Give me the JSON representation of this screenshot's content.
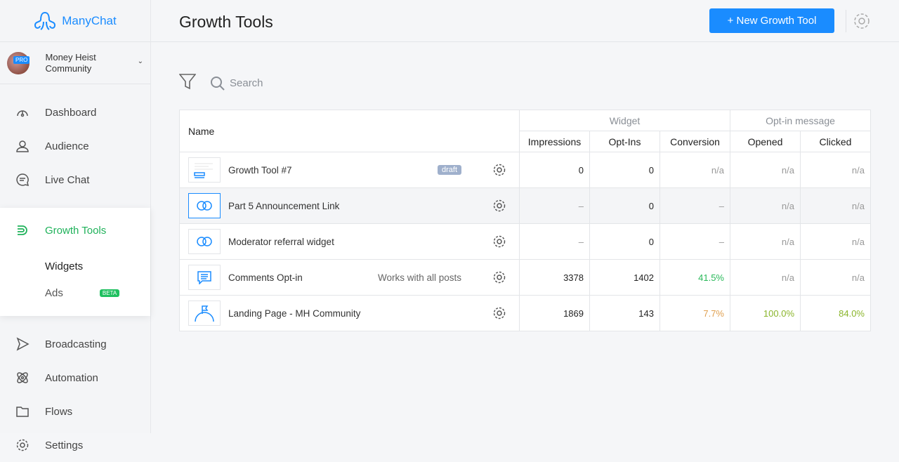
{
  "brand": {
    "name": "ManyChat"
  },
  "account": {
    "name": "Money Heist Community",
    "badge": "PRO"
  },
  "nav": {
    "items_top": [
      {
        "label": "Dashboard",
        "icon": "dashboard-icon"
      },
      {
        "label": "Audience",
        "icon": "user-icon"
      },
      {
        "label": "Live Chat",
        "icon": "chat-icon"
      }
    ],
    "active": {
      "label": "Growth Tools",
      "icon": "growth-tools-icon",
      "subitems": [
        {
          "label": "Widgets"
        },
        {
          "label": "Ads",
          "badge": "BETA"
        }
      ]
    },
    "items_bottom": [
      {
        "label": "Broadcasting",
        "icon": "broadcast-icon"
      },
      {
        "label": "Automation",
        "icon": "automation-icon"
      },
      {
        "label": "Flows",
        "icon": "folder-icon"
      },
      {
        "label": "Settings",
        "icon": "gear-icon"
      }
    ]
  },
  "header": {
    "title": "Growth Tools",
    "new_button": "+ New Growth Tool"
  },
  "toolbar": {
    "search_placeholder": "Search"
  },
  "table": {
    "name_header": "Name",
    "groups": [
      "Widget",
      "Opt-in message"
    ],
    "columns": [
      "Impressions",
      "Opt-Ins",
      "Conversion",
      "Opened",
      "Clicked"
    ],
    "rows": [
      {
        "name": "Growth Tool #7",
        "badge": "draft",
        "note": "",
        "icon": "form-icon",
        "impressions": "0",
        "optins": "0",
        "conversion": "n/a",
        "opened": "n/a",
        "clicked": "n/a"
      },
      {
        "name": "Part 5 Announcement Link",
        "badge": "",
        "note": "",
        "icon": "link-icon",
        "impressions": "–",
        "optins": "0",
        "conversion": "–",
        "opened": "n/a",
        "clicked": "n/a"
      },
      {
        "name": "Moderator referral widget",
        "badge": "",
        "note": "",
        "icon": "link-icon",
        "impressions": "–",
        "optins": "0",
        "conversion": "–",
        "opened": "n/a",
        "clicked": "n/a"
      },
      {
        "name": "Comments Opt-in",
        "badge": "",
        "note": "Works with all posts",
        "icon": "comment-icon",
        "impressions": "3378",
        "optins": "1402",
        "conversion": "41.5%",
        "opened": "n/a",
        "clicked": "n/a"
      },
      {
        "name": "Landing Page - MH Community",
        "badge": "",
        "note": "",
        "icon": "landing-page-icon",
        "impressions": "1869",
        "optins": "143",
        "conversion": "7.7%",
        "opened": "100.0%",
        "clicked": "84.0%"
      }
    ]
  },
  "colors": {
    "accent": "#1a8cff",
    "active_nav": "#20b25b",
    "good": "#2ab95a",
    "warn": "#e0a050",
    "ok": "#8ab52a"
  }
}
